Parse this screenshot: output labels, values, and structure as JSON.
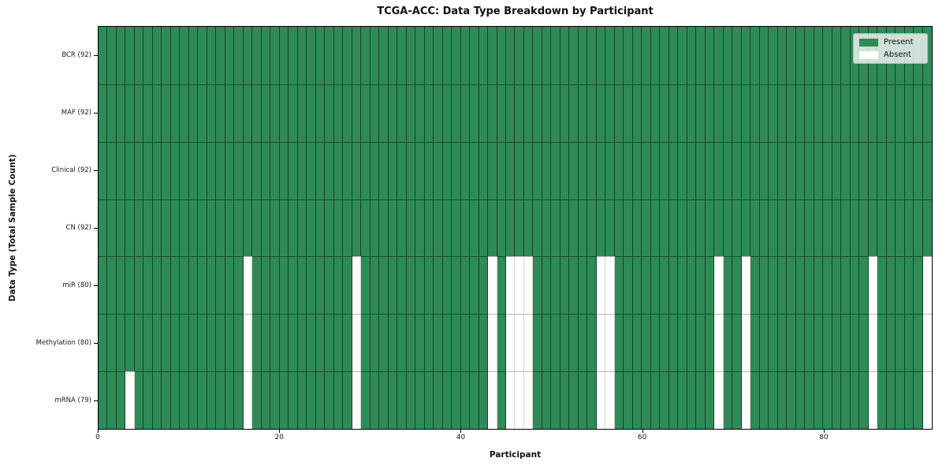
{
  "figure": {
    "title": "TCGA-ACC: Data Type Breakdown by Participant",
    "xlabel": "Participant",
    "ylabel": "Data Type (Total Sample Count)"
  },
  "legend": {
    "items": [
      {
        "label": "Present",
        "color": "#2e8b57"
      },
      {
        "label": "Absent",
        "color": "#ffffff"
      }
    ]
  },
  "chart_data": {
    "type": "heatmap",
    "title": "TCGA-ACC: Data Type Breakdown by Participant",
    "xlabel": "Participant",
    "ylabel": "Data Type (Total Sample Count)",
    "legend_position": "upper right",
    "grid": true,
    "present_color": "#2e8b57",
    "absent_color": "#ffffff",
    "n_participants": 92,
    "x_ticks": [
      0,
      20,
      40,
      60,
      80
    ],
    "x_range": [
      0,
      92
    ],
    "rows": [
      {
        "label": "BCR (92)",
        "data_type": "BCR",
        "total_samples": 92,
        "absent_participants": []
      },
      {
        "label": "MAF (92)",
        "data_type": "MAF",
        "total_samples": 92,
        "absent_participants": []
      },
      {
        "label": "Clinical (92)",
        "data_type": "Clinical",
        "total_samples": 92,
        "absent_participants": []
      },
      {
        "label": "CN (92)",
        "data_type": "CN",
        "total_samples": 92,
        "absent_participants": []
      },
      {
        "label": "miR (80)",
        "data_type": "miR",
        "total_samples": 80,
        "absent_participants": [
          16,
          28,
          43,
          45,
          46,
          47,
          55,
          56,
          68,
          71,
          85,
          91
        ]
      },
      {
        "label": "Methylation (80)",
        "data_type": "Methylation",
        "total_samples": 80,
        "absent_participants": [
          16,
          28,
          43,
          45,
          46,
          47,
          55,
          56,
          68,
          71,
          85,
          91
        ]
      },
      {
        "label": "mRNA (79)",
        "data_type": "mRNA",
        "total_samples": 79,
        "absent_participants": [
          3,
          16,
          28,
          43,
          45,
          46,
          47,
          55,
          56,
          68,
          71,
          85,
          91
        ]
      }
    ]
  }
}
